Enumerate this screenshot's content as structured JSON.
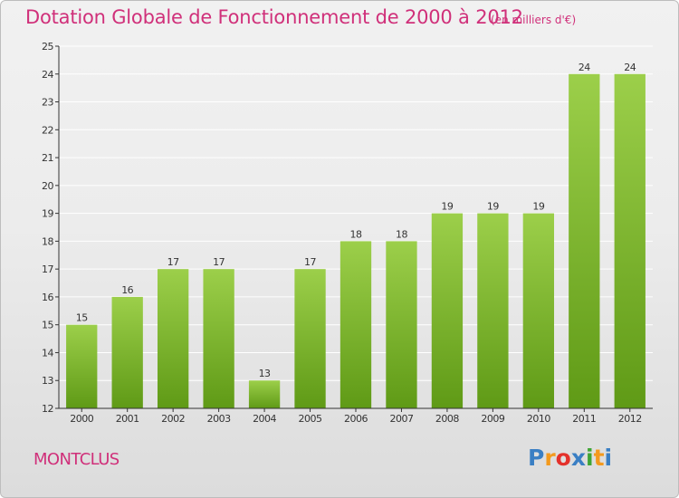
{
  "title": "Dotation Globale de Fonctionnement de 2000 à 2012",
  "subtitle": "(en milliers d'€)",
  "commune": "MONTCLUS",
  "logo": {
    "letters": [
      "P",
      "r",
      "o",
      "x",
      "i",
      "t",
      "i"
    ],
    "colors": [
      "#3a7fc4",
      "#f39a1e",
      "#e4312b",
      "#3a7fc4",
      "#3fa535",
      "#f39a1e",
      "#3a7fc4"
    ]
  },
  "colors": {
    "title": "#d0307a",
    "bar_light": "#9ccf4a",
    "bar_dark": "#5f9a16",
    "axis": "#333333",
    "grid": "#ffffff"
  },
  "chart_data": {
    "type": "bar",
    "categories": [
      "2000",
      "2001",
      "2002",
      "2003",
      "2004",
      "2005",
      "2006",
      "2007",
      "2008",
      "2009",
      "2010",
      "2011",
      "2012"
    ],
    "values": [
      15,
      16,
      17,
      17,
      13,
      17,
      18,
      18,
      19,
      19,
      19,
      24,
      24
    ],
    "ylim": [
      12,
      25
    ],
    "yticks": [
      12,
      13,
      14,
      15,
      16,
      17,
      18,
      19,
      20,
      21,
      22,
      23,
      24,
      25
    ],
    "grid": true,
    "data_labels": true
  }
}
